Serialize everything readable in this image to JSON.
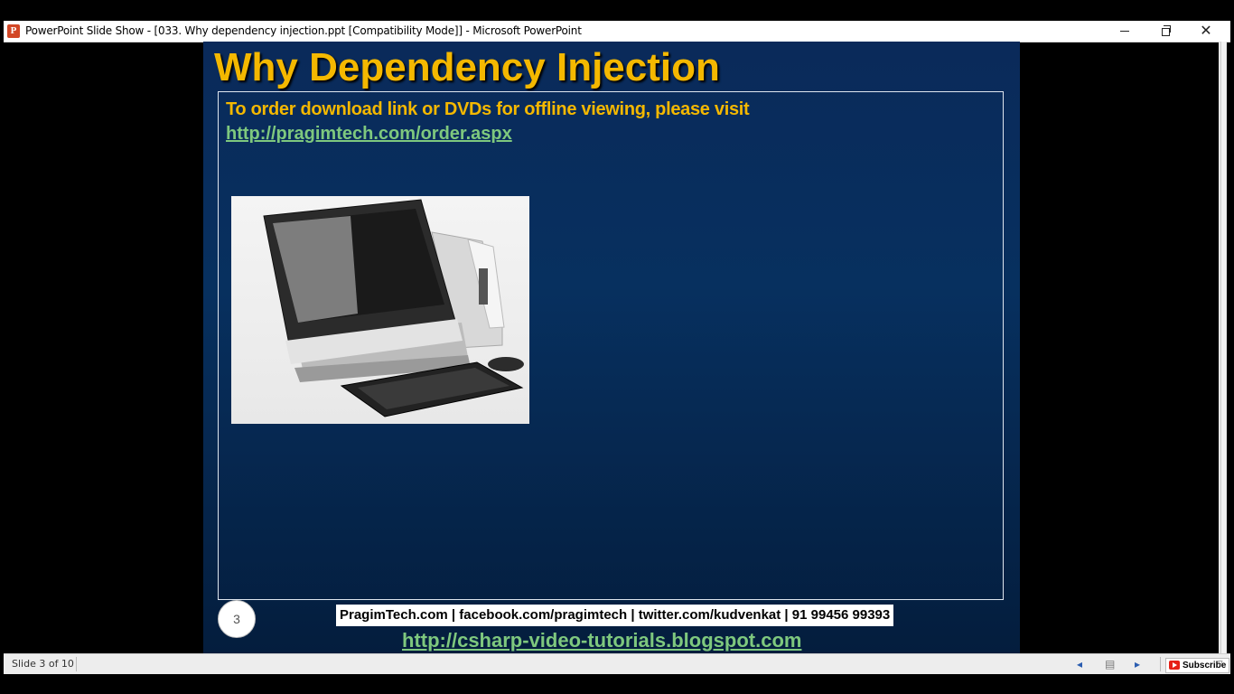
{
  "window": {
    "title": "PowerPoint Slide Show - [033. Why dependency injection.ppt [Compatibility Mode]] - Microsoft PowerPoint",
    "app_icon_letter": "P",
    "controls": {
      "minimize": "minimize-icon",
      "maximize": "restore-icon",
      "close": "close-icon",
      "close_glyph": "✕"
    }
  },
  "slide": {
    "title": "Why Dependency Injection",
    "order_text": "To order download link or DVDs for offline viewing, please visit",
    "order_link": "http://pragimtech.com/order.aspx",
    "image_alt": "all-in-one desktop computer with keyboard and mouse",
    "footer": "PragimTech.com | facebook.com/pragimtech  | twitter.com/kudvenkat  | 91 99456 99393",
    "number": "3",
    "blog_link": "http://csharp-video-tutorials.blogspot.com",
    "colors": {
      "title": "#f4b800",
      "link": "#7ec87e",
      "background": "#07305f"
    }
  },
  "statusbar": {
    "slide_counter": "Slide 3 of 10",
    "prev_icon": "arrow-left-icon",
    "menu_icon": "slide-menu-icon",
    "next_icon": "arrow-right-icon",
    "subscribe": "Subscribe"
  }
}
